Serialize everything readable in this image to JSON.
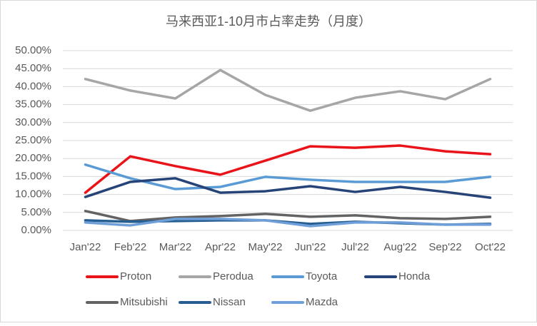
{
  "chart_data": {
    "type": "line",
    "title": "马来西亚1-10月市占率走势（月度）",
    "categories": [
      "Jan'22",
      "Feb'22",
      "Mar'22",
      "Apr'22",
      "May'22",
      "Jun'22",
      "Jul'22",
      "Aug'22",
      "Sep'22",
      "Oct'22"
    ],
    "series": [
      {
        "name": "Proton",
        "color": "#e8141a",
        "values": [
          10.5,
          20.6,
          17.9,
          15.5,
          19.4,
          23.4,
          23.0,
          23.6,
          22.0,
          21.2
        ]
      },
      {
        "name": "Perodua",
        "color": "#a6a6a6",
        "values": [
          42.1,
          38.9,
          36.7,
          44.6,
          37.7,
          33.3,
          36.9,
          38.7,
          36.5,
          42.1
        ]
      },
      {
        "name": "Toyota",
        "color": "#5b9bd5",
        "values": [
          18.3,
          14.5,
          11.5,
          12.1,
          14.9,
          14.1,
          13.5,
          13.5,
          13.5,
          14.9
        ]
      },
      {
        "name": "Honda",
        "color": "#264478",
        "values": [
          9.3,
          13.5,
          14.5,
          10.5,
          10.9,
          12.3,
          10.7,
          12.1,
          10.7,
          9.1
        ]
      },
      {
        "name": "Mitsubishi",
        "color": "#636363",
        "values": [
          5.4,
          2.6,
          3.6,
          4.0,
          4.6,
          3.8,
          4.2,
          3.4,
          3.2,
          3.8
        ]
      },
      {
        "name": "Nissan",
        "color": "#255e91",
        "values": [
          2.8,
          2.4,
          2.6,
          2.8,
          2.8,
          1.8,
          2.4,
          2.0,
          1.6,
          1.8
        ]
      },
      {
        "name": "Mazda",
        "color": "#6f9fd8",
        "values": [
          2.2,
          1.4,
          3.2,
          3.2,
          2.8,
          1.2,
          2.2,
          2.2,
          1.6,
          1.6
        ]
      }
    ],
    "ylim": [
      0,
      50
    ],
    "yticks": [
      {
        "value": 0,
        "label": "0.00%"
      },
      {
        "value": 5,
        "label": "5.00%"
      },
      {
        "value": 10,
        "label": "10.00%"
      },
      {
        "value": 15,
        "label": "15.00%"
      },
      {
        "value": 20,
        "label": "20.00%"
      },
      {
        "value": 25,
        "label": "25.00%"
      },
      {
        "value": 30,
        "label": "30.00%"
      },
      {
        "value": 35,
        "label": "35.00%"
      },
      {
        "value": 40,
        "label": "40.00%"
      },
      {
        "value": 45,
        "label": "45.00%"
      },
      {
        "value": 50,
        "label": "50.00%"
      }
    ],
    "grid": true,
    "legend": "bottom"
  }
}
